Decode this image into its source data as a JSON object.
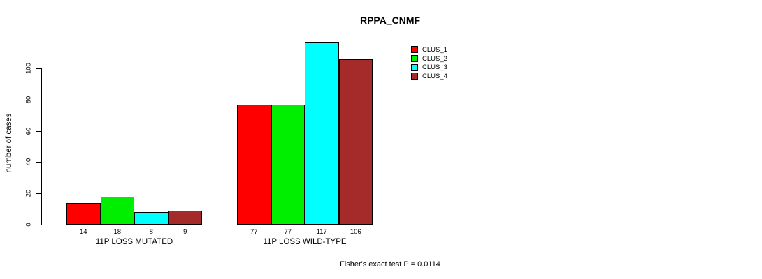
{
  "title": "RPPA_CNMF",
  "footer": "Fisher's exact test P = 0.0114",
  "y_axis": {
    "label": "number of cases",
    "ticks": [
      0,
      20,
      40,
      60,
      80,
      100
    ]
  },
  "legend": {
    "position": "right",
    "entries": [
      {
        "label": "CLUS_1",
        "color": "#FF0000"
      },
      {
        "label": "CLUS_2",
        "color": "#00EE00"
      },
      {
        "label": "CLUS_3",
        "color": "#00FFFF"
      },
      {
        "label": "CLUS_4",
        "color": "#A52A2A"
      }
    ]
  },
  "chart_data": {
    "type": "bar",
    "title": "RPPA_CNMF",
    "xlabel": "",
    "ylabel": "number of cases",
    "ylim": [
      0,
      120
    ],
    "yticks": [
      0,
      20,
      40,
      60,
      80,
      100
    ],
    "grid": false,
    "legend_position": "right",
    "categories": [
      "11P LOSS MUTATED",
      "11P LOSS WILD-TYPE"
    ],
    "series": [
      {
        "name": "CLUS_1",
        "color": "#FF0000",
        "values": [
          14,
          77
        ]
      },
      {
        "name": "CLUS_2",
        "color": "#00EE00",
        "values": [
          18,
          77
        ]
      },
      {
        "name": "CLUS_3",
        "color": "#00FFFF",
        "values": [
          8,
          117
        ]
      },
      {
        "name": "CLUS_4",
        "color": "#A52A2A",
        "values": [
          9,
          106
        ]
      }
    ],
    "bar_labels": [
      [
        14,
        18,
        8,
        9
      ],
      [
        77,
        77,
        117,
        106
      ]
    ],
    "annotation": "Fisher's exact test P = 0.0114"
  }
}
